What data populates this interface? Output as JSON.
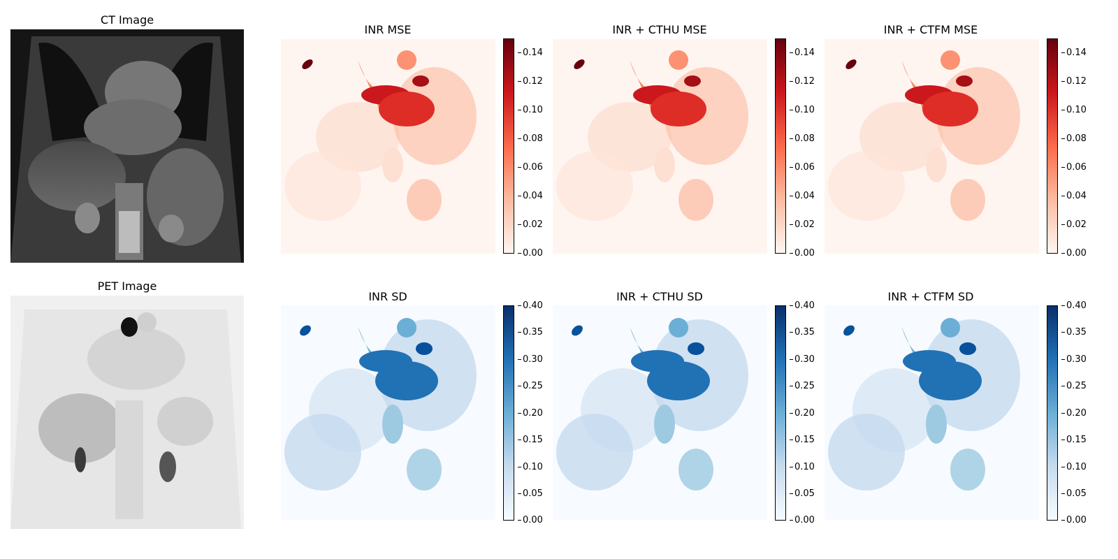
{
  "row1": {
    "ct_title": "CT Image",
    "mse_panels": [
      "INR MSE",
      "INR + CTHU MSE",
      "INR + CTFM MSE"
    ]
  },
  "row2": {
    "pet_title": "PET Image",
    "sd_panels": [
      "INR SD",
      "INR + CTHU SD",
      "INR + CTFM SD"
    ]
  },
  "colorbars": {
    "mse": {
      "colormap": "Reds",
      "ticks": [
        "0.14",
        "0.12",
        "0.10",
        "0.08",
        "0.06",
        "0.04",
        "0.02",
        "0.00"
      ]
    },
    "sd": {
      "colormap": "Blues",
      "ticks": [
        "0.40",
        "0.35",
        "0.30",
        "0.25",
        "0.20",
        "0.15",
        "0.10",
        "0.05",
        "0.00"
      ]
    }
  },
  "colors": {
    "reds_dark": "#67000d",
    "reds_mid": "#ef3b2c",
    "reds_light": "#fff5f0",
    "blues_dark": "#08306b",
    "blues_mid": "#4292c6",
    "blues_light": "#f7fbff"
  }
}
